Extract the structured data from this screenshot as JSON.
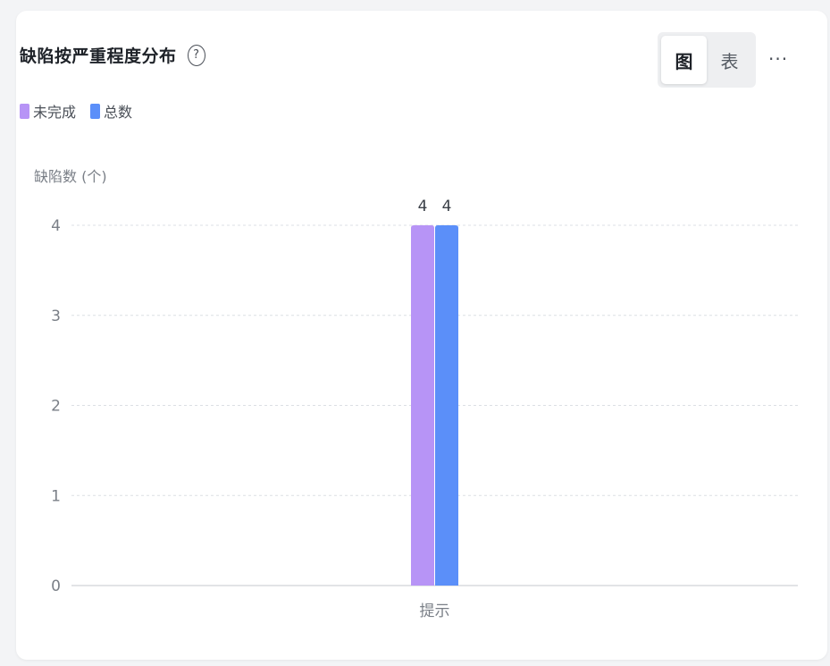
{
  "header": {
    "title": "缺陷按严重程度分布",
    "help_icon": "question-circle-icon",
    "view_toggle": {
      "chart_label": "图",
      "table_label": "表",
      "active": "chart"
    },
    "more_icon": "ellipsis-icon",
    "more_label": "···"
  },
  "legend": {
    "items": [
      {
        "label": "未完成",
        "color": "#b794f6"
      },
      {
        "label": "总数",
        "color": "#5b8ff9"
      }
    ]
  },
  "chart_data": {
    "type": "bar",
    "ylabel": "缺陷数 (个)",
    "xlabel": "",
    "categories": [
      "提示"
    ],
    "series": [
      {
        "name": "未完成",
        "values": [
          4
        ],
        "color": "#b794f6"
      },
      {
        "name": "总数",
        "values": [
          4
        ],
        "color": "#5b8ff9"
      }
    ],
    "ylim": [
      0,
      4
    ],
    "yticks": [
      0,
      1,
      2,
      3,
      4
    ],
    "grid": true,
    "data_labels": true,
    "legend": "top-left"
  }
}
